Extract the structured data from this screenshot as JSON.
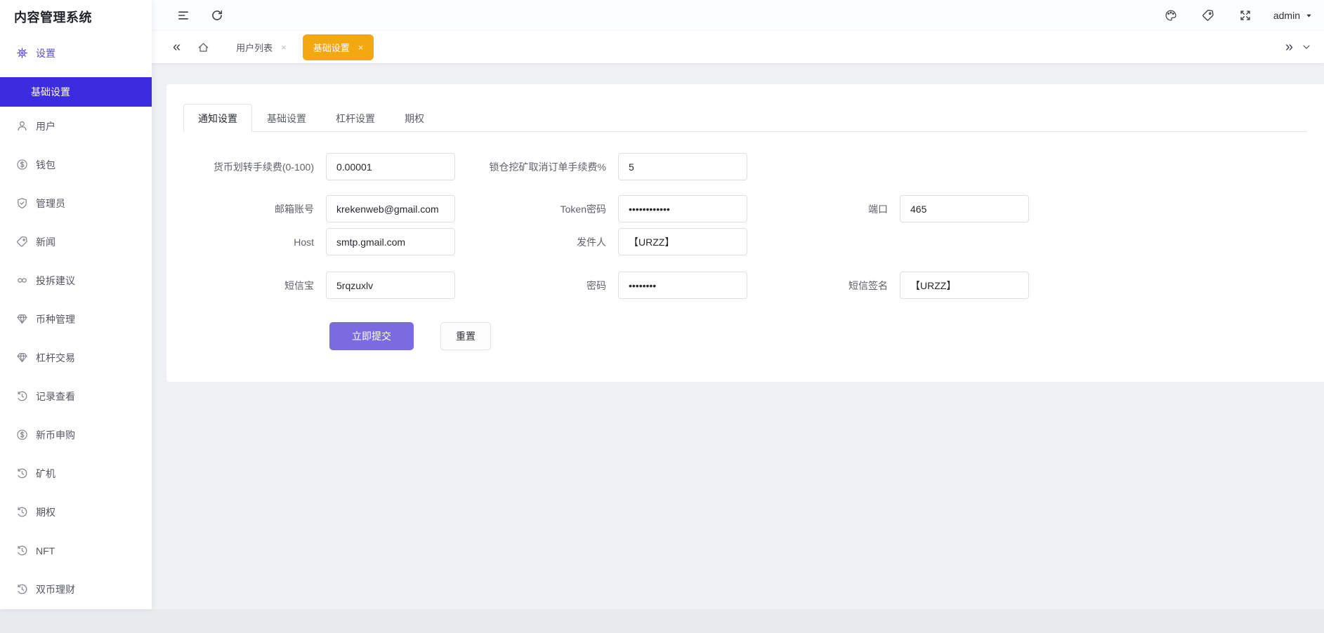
{
  "app": {
    "title": "内容管理系统"
  },
  "topbar": {
    "user": "admin",
    "icons": [
      "collapse-sidebar-icon",
      "refresh-icon",
      "palette-icon",
      "tag-icon",
      "fullscreen-icon",
      "caret-down-icon"
    ]
  },
  "tabbar": {
    "back_glyph": "«",
    "forward_glyph": "»",
    "close_glyph": "×",
    "icons": [
      "home-icon",
      "chevron-down-icon"
    ],
    "tabs": [
      {
        "key": "user-list",
        "label": "用户列表",
        "active": false
      },
      {
        "key": "basic-settings",
        "label": "基础设置",
        "active": true
      }
    ]
  },
  "sidebar": {
    "group": {
      "key": "settings",
      "label": "设置",
      "icon": "gear"
    },
    "active_sub": {
      "key": "basic-settings",
      "label": "基础设置"
    },
    "items": [
      {
        "key": "user",
        "label": "用户",
        "icon": "user"
      },
      {
        "key": "wallet",
        "label": "钱包",
        "icon": "dollar"
      },
      {
        "key": "admin",
        "label": "管理员",
        "icon": "shield"
      },
      {
        "key": "news",
        "label": "新闻",
        "icon": "tag"
      },
      {
        "key": "feedback",
        "label": "投拆建议",
        "icon": "link"
      },
      {
        "key": "coin-manage",
        "label": "币种管理",
        "icon": "gem"
      },
      {
        "key": "leverage-trade",
        "label": "杠杆交易",
        "icon": "gem"
      },
      {
        "key": "records",
        "label": "记录查看",
        "icon": "history"
      },
      {
        "key": "new-coin",
        "label": "新币申购",
        "icon": "dollar"
      },
      {
        "key": "miner",
        "label": "矿机",
        "icon": "history"
      },
      {
        "key": "options",
        "label": "期权",
        "icon": "history"
      },
      {
        "key": "nft",
        "label": "NFT",
        "icon": "history"
      },
      {
        "key": "dual-invest",
        "label": "双币理财",
        "icon": "history"
      }
    ]
  },
  "card": {
    "tabs": [
      {
        "key": "notify",
        "label": "通知设置",
        "active": true
      },
      {
        "key": "basic",
        "label": "基础设置",
        "active": false
      },
      {
        "key": "leverage",
        "label": "杠杆设置",
        "active": false
      },
      {
        "key": "options",
        "label": "期权",
        "active": false
      }
    ]
  },
  "form": {
    "submit_label": "立即提交",
    "reset_label": "重置",
    "rows": [
      [
        {
          "key": "transfer-fee",
          "label": "货币划转手续费(0-100)",
          "value": "0.00001"
        },
        {
          "key": "lock-mining-fee",
          "label": "锁仓挖矿取消订单手续费%",
          "value": "5"
        }
      ],
      [
        {
          "key": "email-account",
          "label": "邮箱账号",
          "value": "krekenweb@gmail.com"
        },
        {
          "key": "token-password",
          "label": "Token密码",
          "value": "••••••••••••"
        },
        {
          "key": "port",
          "label": "端口",
          "value": "465"
        }
      ],
      [
        {
          "key": "host",
          "label": "Host",
          "value": "smtp.gmail.com"
        },
        {
          "key": "sender",
          "label": "发件人",
          "value": "【URZZ】"
        }
      ],
      [
        {
          "key": "smsbao",
          "label": "短信宝",
          "value": "5rqzuxlv"
        },
        {
          "key": "sms-password",
          "label": "密码",
          "value": "••••••••"
        },
        {
          "key": "sms-sign",
          "label": "短信签名",
          "value": "【URZZ】"
        }
      ]
    ]
  },
  "colors": {
    "primary": "#7a6be0",
    "menu_active": "#3d2be0",
    "tab_active": "#f3a812"
  }
}
